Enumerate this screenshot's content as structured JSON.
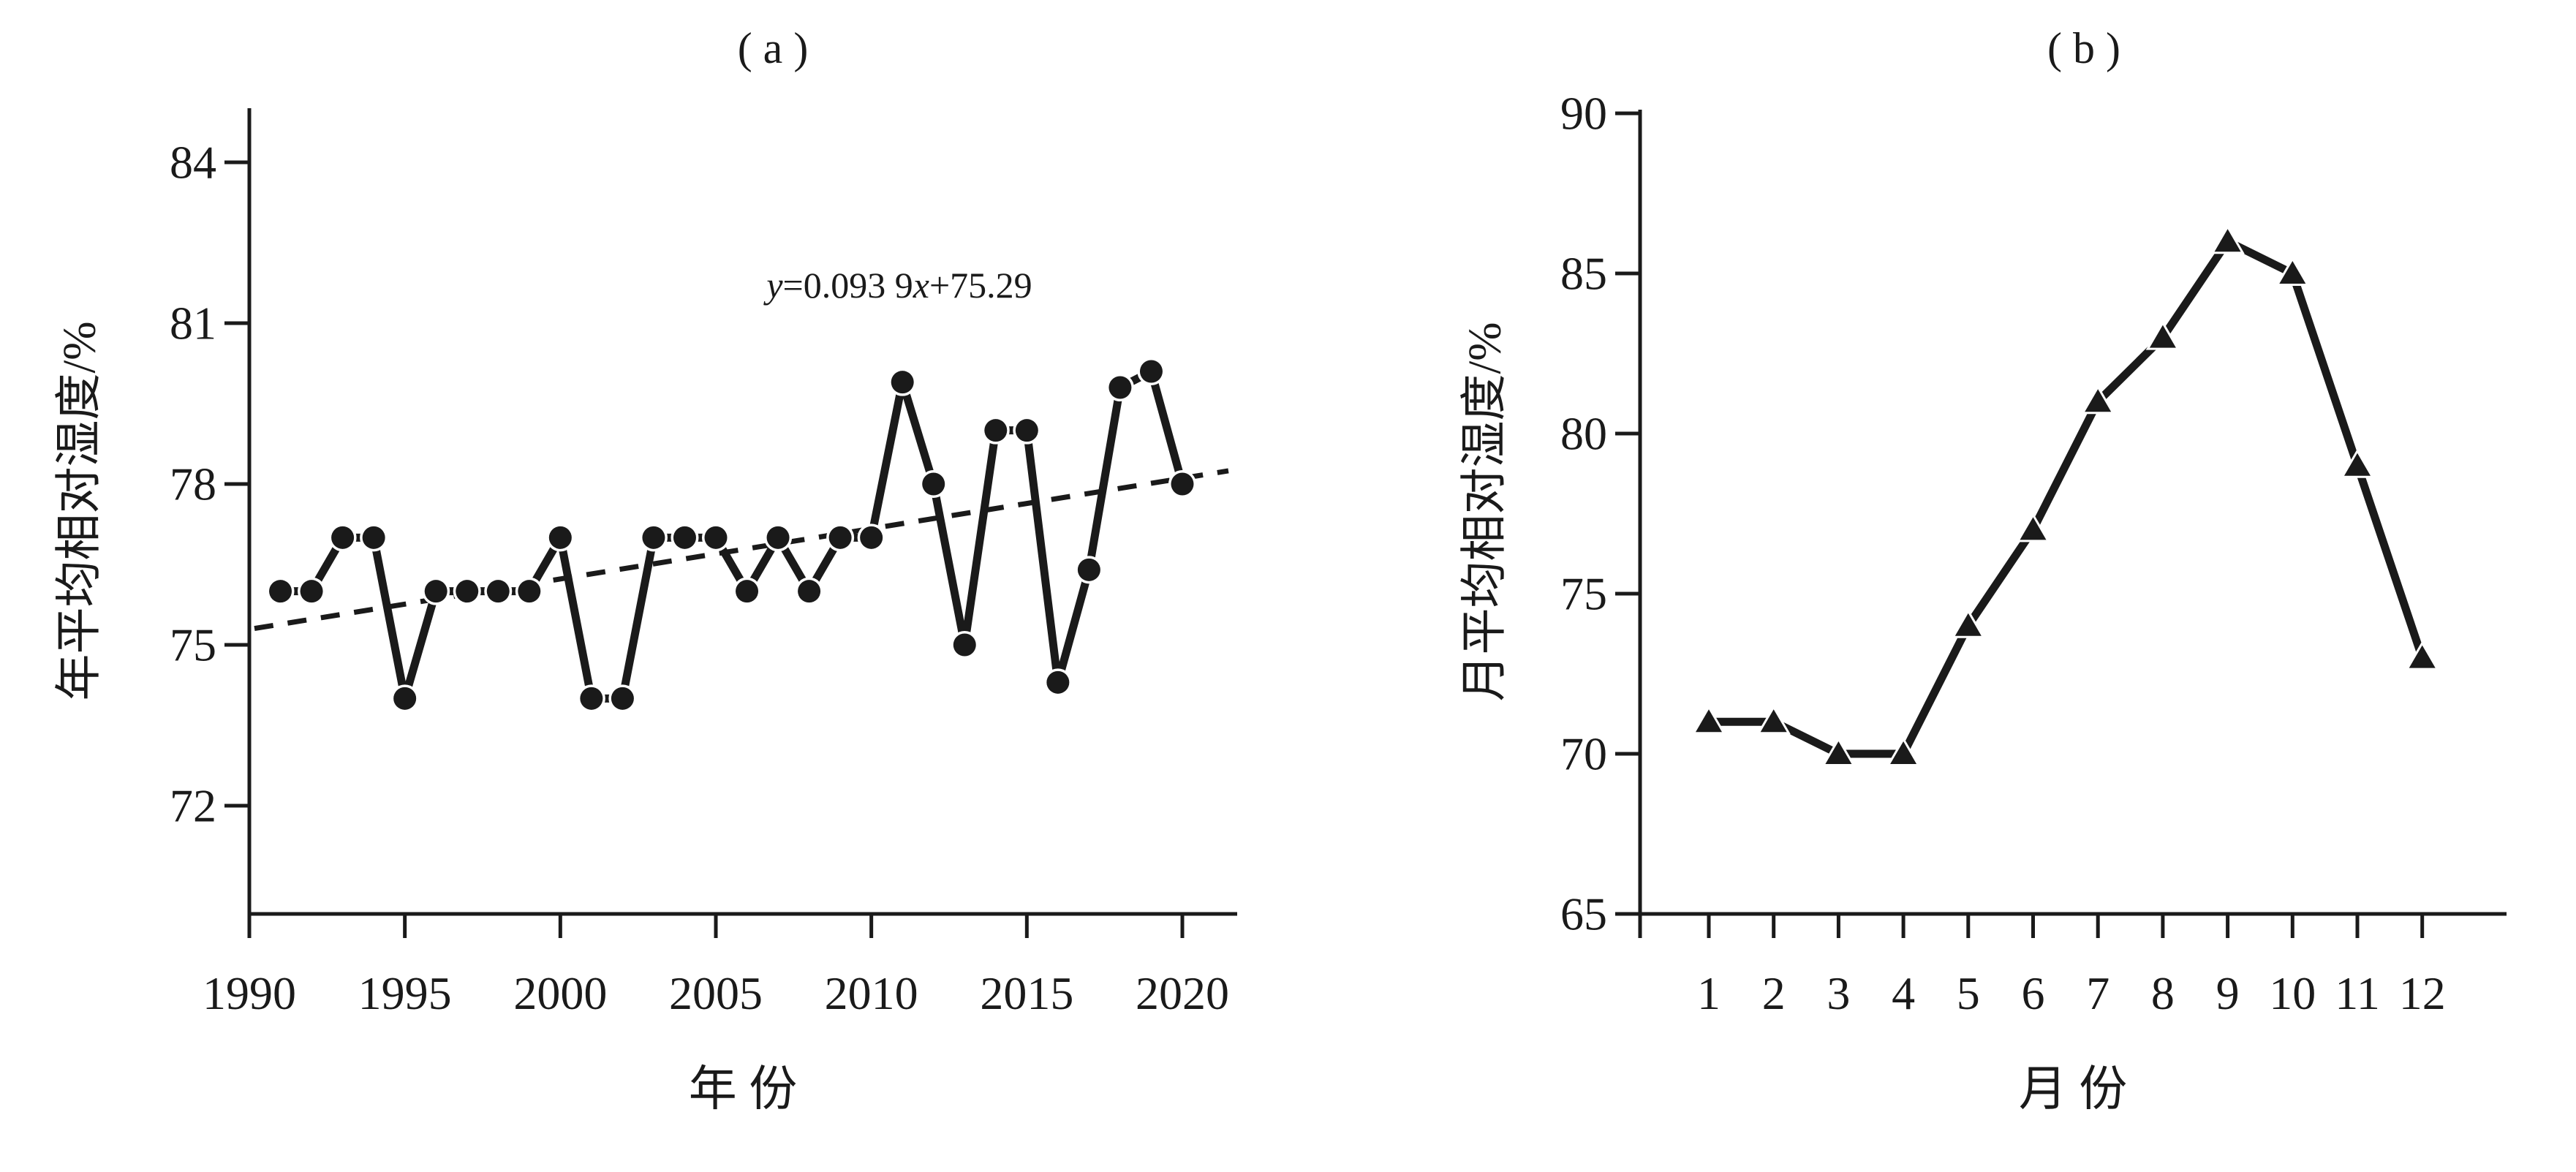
{
  "figure": {
    "background": "#ffffff",
    "ink_color": "#1a1a1a",
    "panel_a_title": "( a )",
    "panel_b_title": "( b )"
  },
  "chart_data": [
    {
      "type": "line",
      "panel": "a",
      "title": "( a )",
      "xlabel": "年 份",
      "ylabel": "年平均相对湿度/%",
      "marker": "circle",
      "line_style": "solid",
      "grid": false,
      "legend": null,
      "xticks": [
        1990,
        1995,
        2000,
        2005,
        2010,
        2015,
        2020
      ],
      "yticks": [
        84,
        81,
        78,
        75,
        72
      ],
      "xlim": [
        1990,
        2021.8
      ],
      "ylim": [
        70,
        85
      ],
      "x": [
        1991,
        1992,
        1993,
        1994,
        1995,
        1996,
        1997,
        1998,
        1999,
        2000,
        2001,
        2002,
        2003,
        2004,
        2005,
        2006,
        2007,
        2008,
        2009,
        2010,
        2011,
        2012,
        2013,
        2014,
        2015,
        2016,
        2017,
        2018,
        2019,
        2020
      ],
      "values": [
        76,
        76,
        77,
        77,
        74,
        76,
        76,
        76,
        76,
        77,
        74,
        74,
        77,
        77,
        77,
        76,
        77,
        76,
        77,
        77,
        79.9,
        78,
        75,
        79,
        79,
        74.3,
        76.4,
        79.8,
        80.1,
        78
      ],
      "trend": {
        "equation": "y=0.093 9x+75.29",
        "slope_per_year": 0.0939,
        "intercept": 75.29,
        "index_base_year": 1990,
        "style": "dashed"
      }
    },
    {
      "type": "line",
      "panel": "b",
      "title": "( b )",
      "xlabel": "月 份",
      "ylabel": "月平均相对湿度/%",
      "marker": "triangle-up",
      "line_style": "solid",
      "grid": false,
      "legend": null,
      "xticks": [
        1,
        2,
        3,
        4,
        5,
        6,
        7,
        8,
        9,
        10,
        11,
        12
      ],
      "yticks": [
        90,
        85,
        80,
        75,
        70,
        65
      ],
      "xlim": [
        0,
        13.3
      ],
      "ylim": [
        65,
        90.1
      ],
      "x": [
        1,
        2,
        3,
        4,
        5,
        6,
        7,
        8,
        9,
        10,
        11,
        12
      ],
      "values": [
        71,
        71,
        70,
        70,
        74,
        77,
        81,
        83,
        86,
        85,
        79,
        73
      ]
    }
  ]
}
